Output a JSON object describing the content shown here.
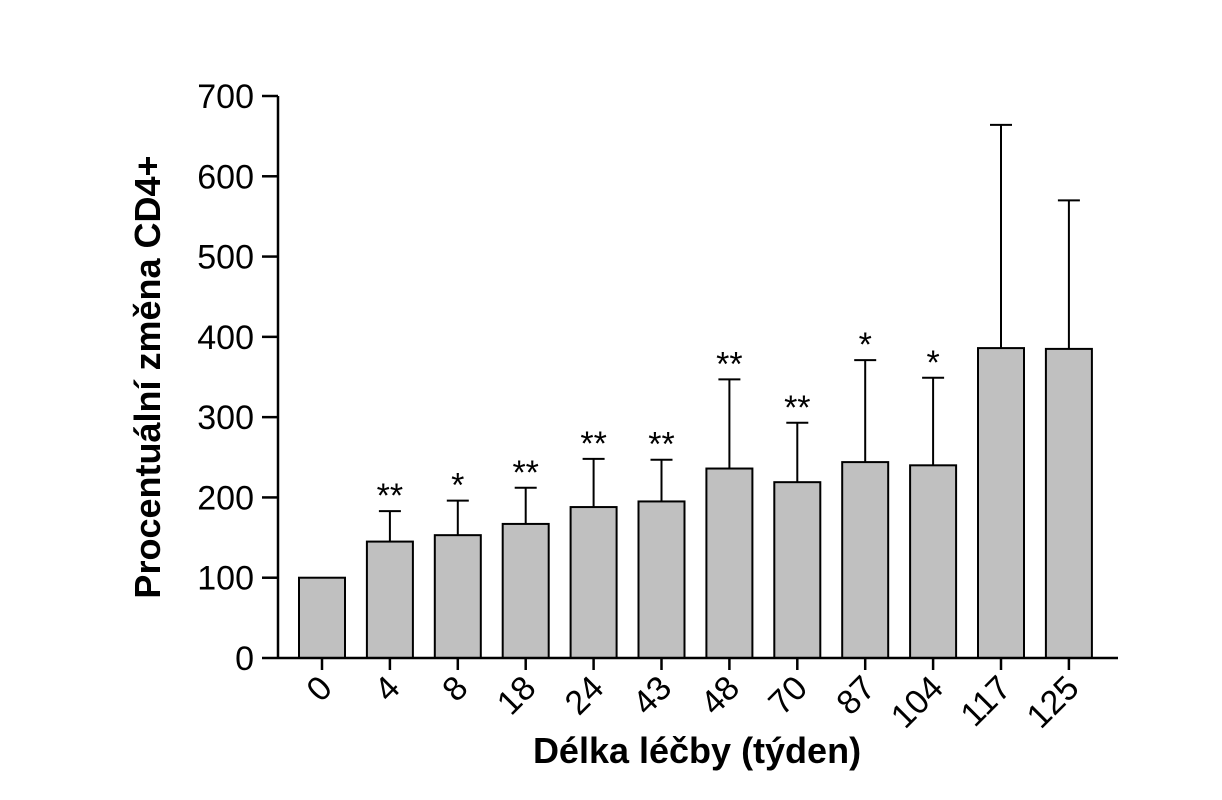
{
  "chart_data": {
    "type": "bar",
    "xlabel": "Délka léčby (týden)",
    "ylabel": "Procentuální změna CD4+",
    "ylim": [
      0,
      700
    ],
    "yticks": [
      0,
      100,
      200,
      300,
      400,
      500,
      600,
      700
    ],
    "categories": [
      "0",
      "4",
      "8",
      "18",
      "24",
      "43",
      "48",
      "70",
      "87",
      "104",
      "117",
      "125"
    ],
    "values": [
      100,
      145,
      153,
      167,
      188,
      195,
      236,
      219,
      244,
      240,
      386,
      385
    ],
    "error_upper": [
      100,
      183,
      196,
      212,
      248,
      247,
      347,
      293,
      371,
      349,
      664,
      570
    ],
    "significance": [
      "",
      "**",
      "*",
      "**",
      "**",
      "**",
      "**",
      "**",
      "*",
      "*",
      "",
      ""
    ],
    "bar_color": "#c0c0c0",
    "grid": false,
    "legend": "none"
  }
}
